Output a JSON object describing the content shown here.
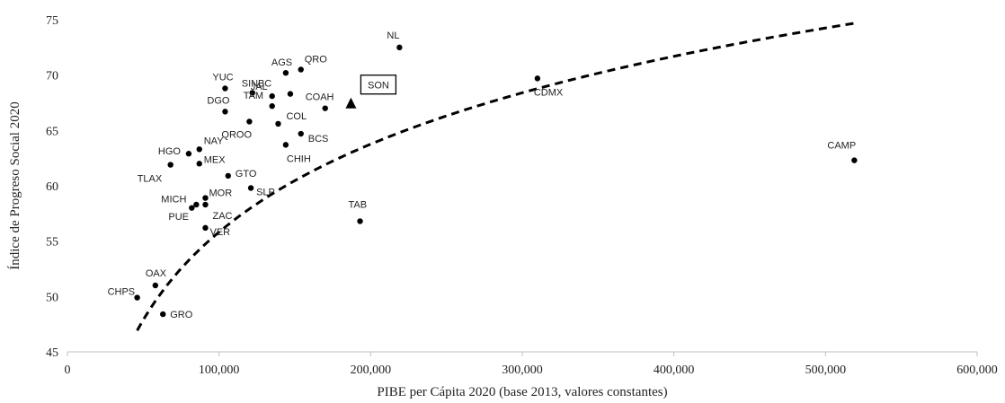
{
  "chart_data": {
    "type": "scatter",
    "title": "",
    "xlabel": "PIBE per Cápita 2020 (base 2013, valores constantes)",
    "ylabel": "Índice de Progreso Social 2020",
    "xlim": [
      0,
      600000
    ],
    "ylim": [
      45,
      75
    ],
    "x_ticks": [
      0,
      100000,
      200000,
      300000,
      400000,
      500000,
      600000
    ],
    "x_tick_labels": [
      "0",
      "100,000",
      "200,000",
      "300,000",
      "400,000",
      "500,000",
      "600,000"
    ],
    "y_ticks": [
      45,
      50,
      55,
      60,
      65,
      70,
      75
    ],
    "y_tick_labels": [
      "45",
      "50",
      "55",
      "60",
      "65",
      "70",
      "75"
    ],
    "grid": false,
    "legend": "none",
    "colors": {
      "points": "#000000",
      "trend": "#000000",
      "axis": "#bfbfbf"
    },
    "highlight": {
      "label": "SON",
      "x": 187000,
      "y": 67.4,
      "marker": "triangle"
    },
    "points": [
      {
        "label": "NL",
        "x": 219000,
        "y": 72.5
      },
      {
        "label": "CDMX",
        "x": 310000,
        "y": 69.7
      },
      {
        "label": "CAMP",
        "x": 519000,
        "y": 62.3
      },
      {
        "label": "AGS",
        "x": 144000,
        "y": 70.2
      },
      {
        "label": "QRO",
        "x": 154000,
        "y": 70.5
      },
      {
        "label": "YUC",
        "x": 104000,
        "y": 68.8
      },
      {
        "label": "SIN",
        "x": 122000,
        "y": 68.4
      },
      {
        "label": "JAL",
        "x": 135000,
        "y": 68.1
      },
      {
        "label": "BC",
        "x": 147000,
        "y": 68.3
      },
      {
        "label": "COAH",
        "x": 170000,
        "y": 67.0
      },
      {
        "label": "DGO",
        "x": 104000,
        "y": 66.7
      },
      {
        "label": "TAM",
        "x": 135000,
        "y": 67.2
      },
      {
        "label": "QROO",
        "x": 120000,
        "y": 65.8
      },
      {
        "label": "COL",
        "x": 139000,
        "y": 65.6
      },
      {
        "label": "BCS",
        "x": 154000,
        "y": 64.7
      },
      {
        "label": "CHIH",
        "x": 144000,
        "y": 63.7
      },
      {
        "label": "HGO",
        "x": 80000,
        "y": 62.9
      },
      {
        "label": "NAY",
        "x": 87000,
        "y": 63.3
      },
      {
        "label": "MEX",
        "x": 87000,
        "y": 62.0
      },
      {
        "label": "TLAX",
        "x": 68000,
        "y": 61.9
      },
      {
        "label": "GTO",
        "x": 106000,
        "y": 60.9
      },
      {
        "label": "SLP",
        "x": 121000,
        "y": 59.8
      },
      {
        "label": "MICH",
        "x": 82000,
        "y": 58.0
      },
      {
        "label": "MOR",
        "x": 91000,
        "y": 58.9
      },
      {
        "label": "ZAC",
        "x": 91000,
        "y": 58.3
      },
      {
        "label": "PUE",
        "x": 85000,
        "y": 58.3
      },
      {
        "label": "VER",
        "x": 91000,
        "y": 56.2
      },
      {
        "label": "TAB",
        "x": 193000,
        "y": 56.8
      },
      {
        "label": "OAX",
        "x": 58000,
        "y": 51.0
      },
      {
        "label": "CHPS",
        "x": 46000,
        "y": 49.9
      },
      {
        "label": "GRO",
        "x": 63000,
        "y": 48.4
      }
    ],
    "trendline": {
      "type": "logarithmic",
      "style": "dashed",
      "x_range": [
        46000,
        519000
      ],
      "a": 11.45,
      "b": -76.0
    }
  }
}
